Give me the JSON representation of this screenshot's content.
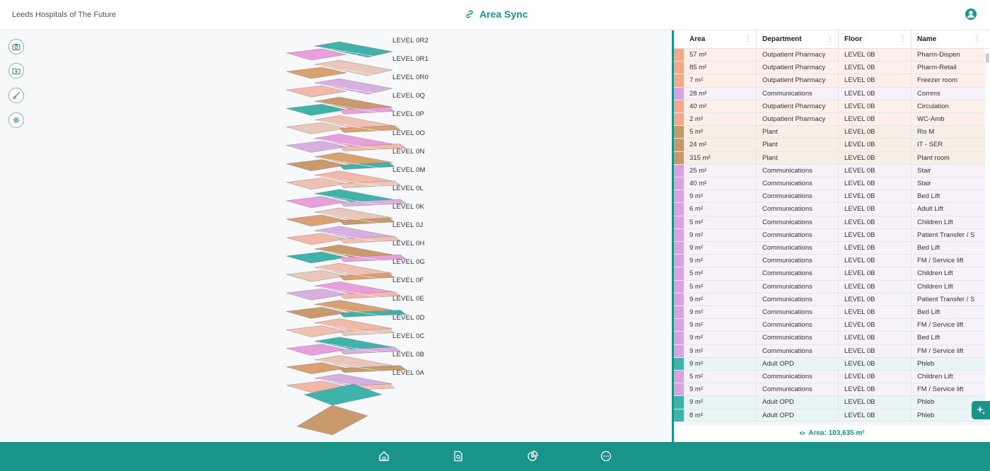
{
  "header": {
    "org_name": "Leeds Hospitals of The Future",
    "app_title": "Area Sync",
    "title_icon": "link-icon",
    "user_icon": "user-account-icon"
  },
  "toolbar": {
    "tools": [
      {
        "name": "camera",
        "icon": "camera-icon"
      },
      {
        "name": "import",
        "icon": "folder-download-icon"
      },
      {
        "name": "brush",
        "icon": "brush-icon"
      },
      {
        "name": "settings",
        "icon": "gear-icon"
      }
    ]
  },
  "viewer": {
    "levels": [
      "LEVEL 0R2",
      "LEVEL 0R1",
      "LEVEL 0R0",
      "LEVEL 0Q",
      "LEVEL 0P",
      "LEVEL 0O",
      "LEVEL 0N",
      "LEVEL 0M",
      "LEVEL 0L",
      "LEVEL 0K",
      "LEVEL 0J",
      "LEVEL 0H",
      "LEVEL 0G",
      "LEVEL 0F",
      "LEVEL 0E",
      "LEVEL 0D",
      "LEVEL 0C",
      "LEVEL 0B",
      "LEVEL 0A"
    ]
  },
  "colors": {
    "accent": "#1a9488",
    "pharmacy": "#f3a98a",
    "communications": "#d9a3e0",
    "plant": "#c49a6c",
    "adult_opd": "#3fb3aa"
  },
  "grid": {
    "columns": [
      "Area",
      "Department",
      "Floor",
      "Name"
    ],
    "column_menu_icon": "kebab-menu-icon",
    "rows": [
      {
        "area": "57 m²",
        "department": "Outpatient Pharmacy",
        "floor": "LEVEL 0B",
        "name": "Pharm-Dispen",
        "color": "#f3a98a",
        "tint": "#fdf0ea"
      },
      {
        "area": "85 m²",
        "department": "Outpatient Pharmacy",
        "floor": "LEVEL 0B",
        "name": "Pharm-Retail",
        "color": "#f3a98a",
        "tint": "#fdf0ea"
      },
      {
        "area": "7 m²",
        "department": "Outpatient Pharmacy",
        "floor": "LEVEL 0B",
        "name": "Freezer room",
        "color": "#f3a98a",
        "tint": "#fdf0ea"
      },
      {
        "area": "28 m²",
        "department": "Communications",
        "floor": "LEVEL 0B",
        "name": "Comms",
        "color": "#d9a3e0",
        "tint": "#f7f1f9"
      },
      {
        "area": "40 m²",
        "department": "Outpatient Pharmacy",
        "floor": "LEVEL 0B",
        "name": "Circulation",
        "color": "#f3a98a",
        "tint": "#fdf0ea"
      },
      {
        "area": "2 m²",
        "department": "Outpatient Pharmacy",
        "floor": "LEVEL 0B",
        "name": "WC-Amb",
        "color": "#f3a98a",
        "tint": "#fdf0ea"
      },
      {
        "area": "5 m²",
        "department": "Plant",
        "floor": "LEVEL 0B",
        "name": "Ris M",
        "color": "#c49a6c",
        "tint": "#f6efe6"
      },
      {
        "area": "24 m²",
        "department": "Plant",
        "floor": "LEVEL 0B",
        "name": "IT - SER",
        "color": "#c49a6c",
        "tint": "#f6efe6"
      },
      {
        "area": "315 m²",
        "department": "Plant",
        "floor": "LEVEL 0B",
        "name": "Plant room",
        "color": "#c49a6c",
        "tint": "#f6efe6"
      },
      {
        "area": "25 m²",
        "department": "Communications",
        "floor": "LEVEL 0B",
        "name": "Stair",
        "color": "#d9a3e0",
        "tint": "#f7f1f9"
      },
      {
        "area": "40 m²",
        "department": "Communications",
        "floor": "LEVEL 0B",
        "name": "Stair",
        "color": "#d9a3e0",
        "tint": "#f7f1f9"
      },
      {
        "area": "9 m²",
        "department": "Communications",
        "floor": "LEVEL 0B",
        "name": "Bed Lift",
        "color": "#d9a3e0",
        "tint": "#f7f1f9"
      },
      {
        "area": "6 m²",
        "department": "Communications",
        "floor": "LEVEL 0B",
        "name": "Adult Lift",
        "color": "#d9a3e0",
        "tint": "#f7f1f9"
      },
      {
        "area": "5 m²",
        "department": "Communications",
        "floor": "LEVEL 0B",
        "name": "Children Lift",
        "color": "#d9a3e0",
        "tint": "#f7f1f9"
      },
      {
        "area": "9 m²",
        "department": "Communications",
        "floor": "LEVEL 0B",
        "name": "Patient Transfer / S",
        "color": "#d9a3e0",
        "tint": "#f7f1f9"
      },
      {
        "area": "9 m²",
        "department": "Communications",
        "floor": "LEVEL 0B",
        "name": "Bed Lift",
        "color": "#d9a3e0",
        "tint": "#f7f1f9"
      },
      {
        "area": "9 m²",
        "department": "Communications",
        "floor": "LEVEL 0B",
        "name": "FM / Service lift",
        "color": "#d9a3e0",
        "tint": "#f7f1f9"
      },
      {
        "area": "5 m²",
        "department": "Communications",
        "floor": "LEVEL 0B",
        "name": "Children Lift",
        "color": "#d9a3e0",
        "tint": "#f7f1f9"
      },
      {
        "area": "5 m²",
        "department": "Communications",
        "floor": "LEVEL 0B",
        "name": "Children Lift",
        "color": "#d9a3e0",
        "tint": "#f7f1f9"
      },
      {
        "area": "9 m²",
        "department": "Communications",
        "floor": "LEVEL 0B",
        "name": "Patient Transfer / S",
        "color": "#d9a3e0",
        "tint": "#f7f1f9"
      },
      {
        "area": "9 m²",
        "department": "Communications",
        "floor": "LEVEL 0B",
        "name": "Bed Lift",
        "color": "#d9a3e0",
        "tint": "#f7f1f9"
      },
      {
        "area": "9 m²",
        "department": "Communications",
        "floor": "LEVEL 0B",
        "name": "FM / Service lift",
        "color": "#d9a3e0",
        "tint": "#f7f1f9"
      },
      {
        "area": "9 m²",
        "department": "Communications",
        "floor": "LEVEL 0B",
        "name": "Bed Lift",
        "color": "#d9a3e0",
        "tint": "#f7f1f9"
      },
      {
        "area": "9 m²",
        "department": "Communications",
        "floor": "LEVEL 0B",
        "name": "FM / Service lift",
        "color": "#d9a3e0",
        "tint": "#f7f1f9"
      },
      {
        "area": "9 m²",
        "department": "Adult OPD",
        "floor": "LEVEL 0B",
        "name": "Phleb",
        "color": "#3fb3aa",
        "tint": "#e8f5f4"
      },
      {
        "area": "5 m²",
        "department": "Communications",
        "floor": "LEVEL 0B",
        "name": "Children Lift",
        "color": "#d9a3e0",
        "tint": "#f7f1f9"
      },
      {
        "area": "9 m²",
        "department": "Communications",
        "floor": "LEVEL 0B",
        "name": "FM / Service lift",
        "color": "#d9a3e0",
        "tint": "#f7f1f9"
      },
      {
        "area": "9 m²",
        "department": "Adult OPD",
        "floor": "LEVEL 0B",
        "name": "Phleb",
        "color": "#3fb3aa",
        "tint": "#e8f5f4"
      },
      {
        "area": "8 m²",
        "department": "Adult OPD",
        "floor": "LEVEL 0B",
        "name": "Phleb",
        "color": "#3fb3aa",
        "tint": "#e8f5f4"
      }
    ],
    "total_icon": "eye-icon",
    "total_label": "Area: 103,635 m²"
  },
  "ai_button": {
    "icon": "sparkle-ai-icon"
  },
  "footer_nav": [
    {
      "name": "home",
      "icon": "home-icon"
    },
    {
      "name": "document-search",
      "icon": "document-search-icon"
    },
    {
      "name": "analytics",
      "icon": "pie-chart-icon"
    },
    {
      "name": "more",
      "icon": "more-circle-icon"
    }
  ]
}
